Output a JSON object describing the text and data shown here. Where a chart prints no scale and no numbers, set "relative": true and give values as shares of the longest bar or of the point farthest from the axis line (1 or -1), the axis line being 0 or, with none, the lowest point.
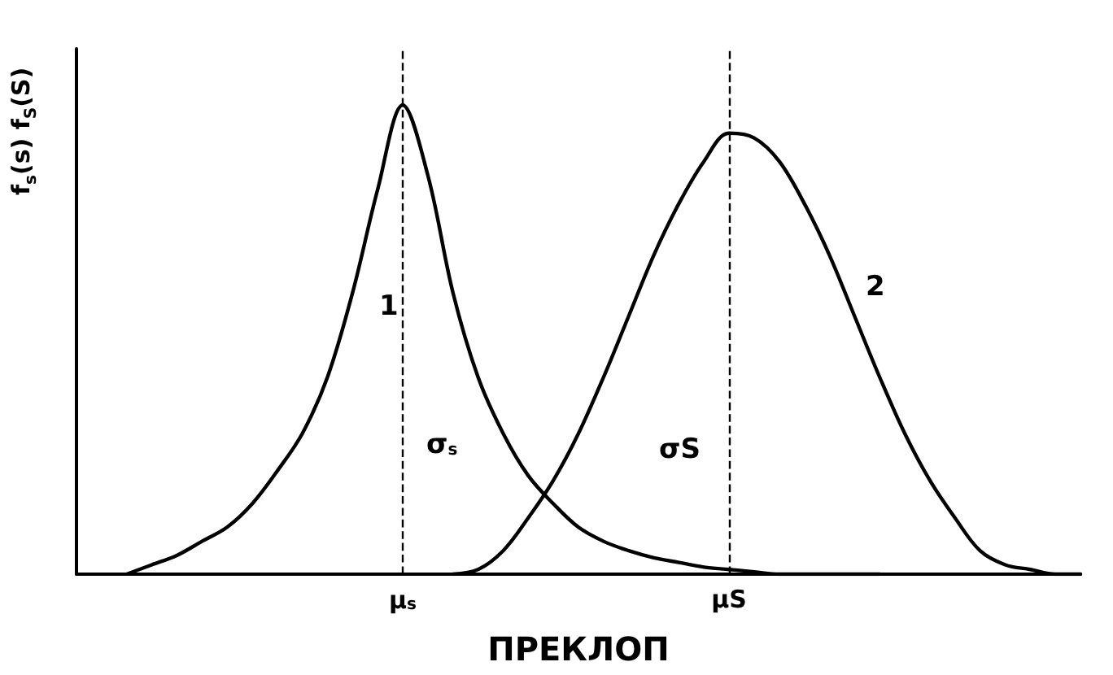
{
  "chart_data": {
    "type": "line",
    "relative": true,
    "xlabel": "ПРЕКЛОП",
    "ylabel": "f$_{s}$(s)  f$_{S}$(S)",
    "marker": "none",
    "line_style": "solid",
    "grid": false,
    "categories": [
      null,
      null,
      null,
      null,
      null,
      null,
      null,
      null,
      null,
      null,
      null,
      null,
      null,
      "μ$_{s}$",
      null,
      null,
      null,
      null,
      null,
      null,
      null,
      null,
      null,
      null,
      null,
      null,
      "μS",
      null,
      null,
      null,
      null,
      null,
      null,
      null,
      null,
      null,
      null,
      null,
      null,
      null,
      null
    ],
    "series": [
      {
        "color": "#000000",
        "values": [
          null,
          null,
          0.0,
          0.02,
          0.04,
          0.07,
          0.1,
          0.15,
          0.22,
          0.3,
          0.42,
          0.6,
          0.82,
          1.0,
          0.85,
          0.6,
          0.42,
          0.3,
          0.21,
          0.15,
          0.1,
          0.07,
          0.05,
          0.035,
          0.025,
          0.015,
          0.01,
          0.005,
          0.0,
          0.0,
          0.0,
          0.0,
          0.0,
          null,
          null,
          null,
          null,
          null,
          null,
          null,
          null
        ]
      },
      {
        "color": "#000000",
        "values": [
          null,
          null,
          null,
          null,
          null,
          null,
          null,
          null,
          null,
          null,
          null,
          null,
          null,
          null,
          null,
          0.0,
          0.01,
          0.05,
          0.12,
          0.2,
          0.3,
          0.42,
          0.55,
          0.68,
          0.79,
          0.88,
          0.94,
          0.93,
          0.88,
          0.79,
          0.68,
          0.55,
          0.42,
          0.3,
          0.2,
          0.12,
          0.05,
          0.02,
          0.01,
          0.0,
          0.0
        ]
      }
    ],
    "ref_lines": [
      {
        "axis": "x",
        "value": "μ$_{s}$",
        "label": null,
        "line_style": "dashed",
        "color": "#000000"
      },
      {
        "axis": "x",
        "value": "μS",
        "label": null,
        "line_style": "dashed",
        "color": "#000000"
      }
    ],
    "annotations": [
      "1",
      "2",
      "σ$_{s}$",
      "σS"
    ]
  }
}
